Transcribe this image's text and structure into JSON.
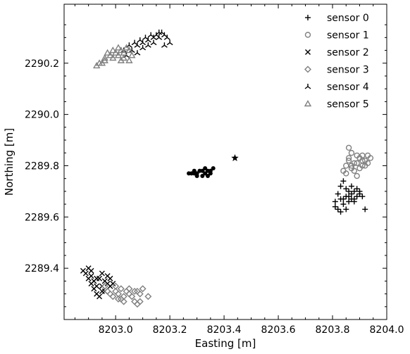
{
  "chart_data": {
    "type": "scatter",
    "xlabel": "Easting [m]",
    "ylabel": "Northing [m]",
    "xlim": [
      8202.81,
      8204.0
    ],
    "ylim": [
      2289.2,
      2290.43
    ],
    "xticks": [
      8203.0,
      8203.2,
      8203.4,
      8203.6,
      8203.8,
      8204.0
    ],
    "xtick_labels": [
      "8203.0",
      "8203.2",
      "8203.4",
      "8203.6",
      "8203.8",
      "8204.0"
    ],
    "yticks": [
      2289.4,
      2289.6,
      2289.8,
      2290.0,
      2290.2
    ],
    "ytick_labels": [
      "2289.4",
      "2289.6",
      "2289.8",
      "2290.0",
      "2290.2"
    ],
    "legend_position": "top-right",
    "ticks_direction": "in",
    "series": [
      {
        "name": "sensor 0",
        "marker": "plus",
        "color": "#000000",
        "points": [
          [
            8203.81,
            2289.66
          ],
          [
            8203.82,
            2289.63
          ],
          [
            8203.83,
            2289.67
          ],
          [
            8203.84,
            2289.65
          ],
          [
            8203.85,
            2289.68
          ],
          [
            8203.86,
            2289.7
          ],
          [
            8203.87,
            2289.69
          ],
          [
            8203.88,
            2289.67
          ],
          [
            8203.89,
            2289.71
          ],
          [
            8203.9,
            2289.69
          ],
          [
            8203.91,
            2289.68
          ],
          [
            8203.82,
            2289.69
          ],
          [
            8203.83,
            2289.72
          ],
          [
            8203.84,
            2289.74
          ],
          [
            8203.85,
            2289.71
          ],
          [
            8203.86,
            2289.66
          ],
          [
            8203.87,
            2289.72
          ],
          [
            8203.88,
            2289.7
          ],
          [
            8203.81,
            2289.64
          ],
          [
            8203.83,
            2289.62
          ],
          [
            8203.85,
            2289.63
          ],
          [
            8203.86,
            2289.68
          ],
          [
            8203.88,
            2289.66
          ],
          [
            8203.9,
            2289.7
          ],
          [
            8203.92,
            2289.63
          ],
          [
            8203.84,
            2289.67
          ],
          [
            8203.87,
            2289.67
          ],
          [
            8203.89,
            2289.68
          ]
        ]
      },
      {
        "name": "sensor 1",
        "marker": "circle",
        "color": "#808080",
        "points": [
          [
            8203.85,
            2289.8
          ],
          [
            8203.86,
            2289.82
          ],
          [
            8203.87,
            2289.79
          ],
          [
            8203.88,
            2289.81
          ],
          [
            8203.89,
            2289.84
          ],
          [
            8203.9,
            2289.83
          ],
          [
            8203.91,
            2289.8
          ],
          [
            8203.92,
            2289.82
          ],
          [
            8203.93,
            2289.84
          ],
          [
            8203.94,
            2289.83
          ],
          [
            8203.86,
            2289.87
          ],
          [
            8203.87,
            2289.85
          ],
          [
            8203.88,
            2289.78
          ],
          [
            8203.89,
            2289.76
          ],
          [
            8203.9,
            2289.79
          ],
          [
            8203.91,
            2289.82
          ],
          [
            8203.92,
            2289.8
          ],
          [
            8203.93,
            2289.81
          ],
          [
            8203.84,
            2289.78
          ],
          [
            8203.85,
            2289.77
          ],
          [
            8203.87,
            2289.8
          ],
          [
            8203.89,
            2289.81
          ],
          [
            8203.91,
            2289.84
          ],
          [
            8203.86,
            2289.83
          ]
        ]
      },
      {
        "name": "sensor 2",
        "marker": "x",
        "color": "#000000",
        "points": [
          [
            8202.89,
            2289.38
          ],
          [
            8202.9,
            2289.4
          ],
          [
            8202.91,
            2289.37
          ],
          [
            8202.92,
            2289.35
          ],
          [
            8202.93,
            2289.33
          ],
          [
            8202.94,
            2289.36
          ],
          [
            8202.95,
            2289.38
          ],
          [
            8202.96,
            2289.35
          ],
          [
            8202.97,
            2289.37
          ],
          [
            8202.98,
            2289.36
          ],
          [
            8202.99,
            2289.34
          ],
          [
            8202.9,
            2289.36
          ],
          [
            8202.91,
            2289.34
          ],
          [
            8202.92,
            2289.32
          ],
          [
            8202.93,
            2289.3
          ],
          [
            8202.95,
            2289.33
          ],
          [
            8202.96,
            2289.31
          ],
          [
            8202.97,
            2289.34
          ],
          [
            8202.94,
            2289.29
          ],
          [
            8202.88,
            2289.39
          ],
          [
            8202.91,
            2289.39
          ],
          [
            8202.93,
            2289.36
          ],
          [
            8202.98,
            2289.33
          ],
          [
            8202.95,
            2289.31
          ]
        ]
      },
      {
        "name": "sensor 3",
        "marker": "diamond",
        "color": "#808080",
        "points": [
          [
            8202.97,
            2289.31
          ],
          [
            8202.98,
            2289.3
          ],
          [
            8202.99,
            2289.29
          ],
          [
            8203.0,
            2289.31
          ],
          [
            8203.01,
            2289.3
          ],
          [
            8203.02,
            2289.28
          ],
          [
            8203.03,
            2289.29
          ],
          [
            8203.04,
            2289.31
          ],
          [
            8203.05,
            2289.3
          ],
          [
            8203.06,
            2289.29
          ],
          [
            8203.07,
            2289.27
          ],
          [
            8203.08,
            2289.31
          ],
          [
            8203.09,
            2289.3
          ],
          [
            8203.1,
            2289.32
          ],
          [
            8203.12,
            2289.29
          ],
          [
            8203.0,
            2289.33
          ],
          [
            8203.01,
            2289.28
          ],
          [
            8203.03,
            2289.27
          ],
          [
            8203.05,
            2289.32
          ],
          [
            8203.07,
            2289.31
          ],
          [
            8203.08,
            2289.26
          ],
          [
            8203.09,
            2289.27
          ],
          [
            8202.96,
            2289.33
          ],
          [
            8203.02,
            2289.32
          ]
        ]
      },
      {
        "name": "sensor 4",
        "marker": "tri_down",
        "color": "#000000",
        "points": [
          [
            8203.03,
            2290.25
          ],
          [
            8203.05,
            2290.27
          ],
          [
            8203.06,
            2290.25
          ],
          [
            8203.07,
            2290.28
          ],
          [
            8203.08,
            2290.27
          ],
          [
            8203.09,
            2290.29
          ],
          [
            8203.1,
            2290.28
          ],
          [
            8203.11,
            2290.3
          ],
          [
            8203.12,
            2290.29
          ],
          [
            8203.13,
            2290.31
          ],
          [
            8203.14,
            2290.3
          ],
          [
            8203.15,
            2290.31
          ],
          [
            8203.16,
            2290.3
          ],
          [
            8203.17,
            2290.32
          ],
          [
            8203.18,
            2290.31
          ],
          [
            8203.19,
            2290.3
          ],
          [
            8203.1,
            2290.26
          ],
          [
            8203.12,
            2290.27
          ],
          [
            8203.18,
            2290.27
          ],
          [
            8203.2,
            2290.28
          ],
          [
            8203.04,
            2290.23
          ],
          [
            8203.14,
            2290.28
          ],
          [
            8203.16,
            2290.32
          ],
          [
            8203.08,
            2290.24
          ]
        ]
      },
      {
        "name": "sensor 5",
        "marker": "triangle",
        "color": "#808080",
        "points": [
          [
            8202.93,
            2290.19
          ],
          [
            8202.95,
            2290.2
          ],
          [
            8202.96,
            2290.21
          ],
          [
            8202.98,
            2290.23
          ],
          [
            8202.99,
            2290.22
          ],
          [
            8203.0,
            2290.24
          ],
          [
            8203.01,
            2290.23
          ],
          [
            8203.02,
            2290.25
          ],
          [
            8203.03,
            2290.24
          ],
          [
            8203.04,
            2290.26
          ],
          [
            8203.05,
            2290.25
          ],
          [
            8203.06,
            2290.23
          ],
          [
            8202.97,
            2290.24
          ],
          [
            8202.99,
            2290.25
          ],
          [
            8203.01,
            2290.26
          ],
          [
            8203.03,
            2290.22
          ],
          [
            8203.05,
            2290.21
          ],
          [
            8202.94,
            2290.2
          ],
          [
            8202.96,
            2290.22
          ],
          [
            8203.02,
            2290.21
          ]
        ]
      },
      {
        "name": "",
        "marker": "dot",
        "color": "#000000",
        "points": [
          [
            8203.27,
            2289.77
          ],
          [
            8203.28,
            2289.77
          ],
          [
            8203.29,
            2289.78
          ],
          [
            8203.3,
            2289.77
          ],
          [
            8203.31,
            2289.78
          ],
          [
            8203.32,
            2289.78
          ],
          [
            8203.33,
            2289.77
          ],
          [
            8203.34,
            2289.78
          ],
          [
            8203.35,
            2289.78
          ],
          [
            8203.36,
            2289.79
          ],
          [
            8203.3,
            2289.76
          ],
          [
            8203.32,
            2289.76
          ],
          [
            8203.34,
            2289.76
          ],
          [
            8203.29,
            2289.77
          ],
          [
            8203.33,
            2289.79
          ],
          [
            8203.35,
            2289.77
          ]
        ]
      },
      {
        "name": "",
        "marker": "star",
        "color": "#000000",
        "points": [
          [
            8203.44,
            2289.83
          ]
        ]
      }
    ]
  }
}
